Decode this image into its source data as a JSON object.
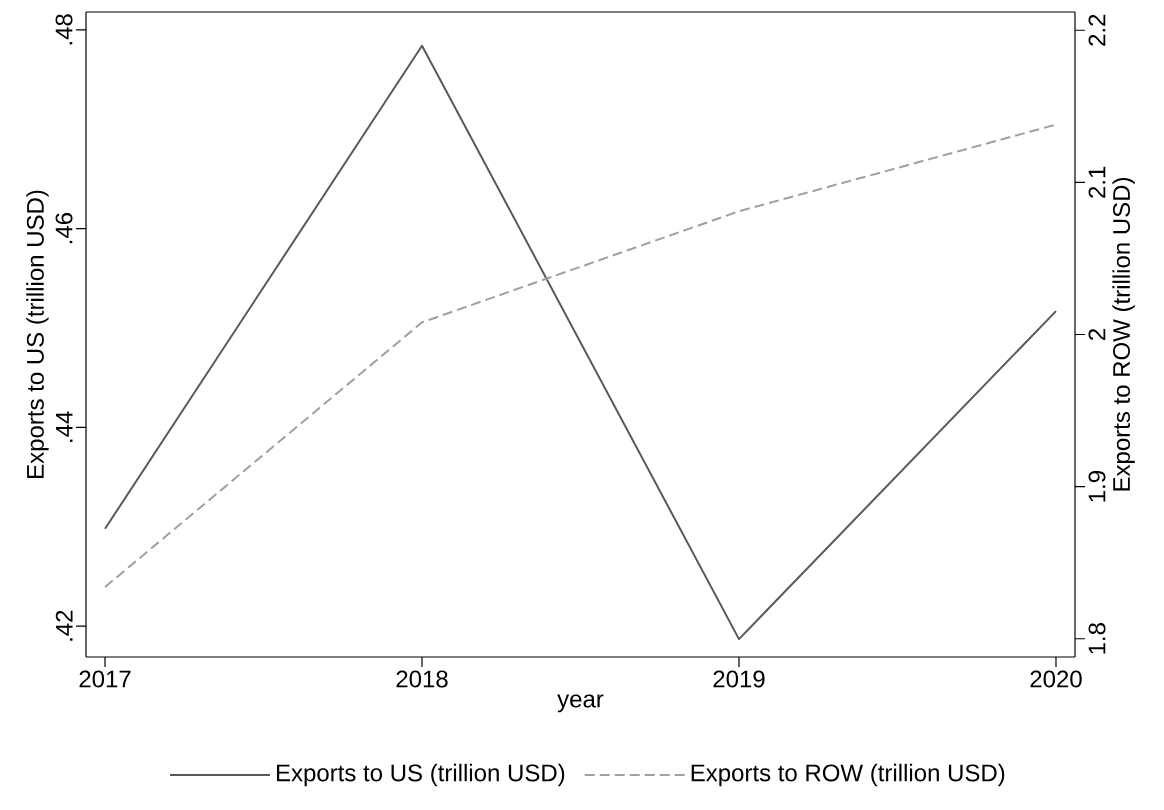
{
  "chart_data": {
    "type": "line",
    "xlabel": "year",
    "ylabel": "Exports to US (trillion USD)",
    "y2label": "Exports to ROW (trillion USD)",
    "x": [
      2017,
      2018,
      2019,
      2020
    ],
    "series": [
      {
        "name": "Exports to US (trillion USD)",
        "color": "#595959",
        "line_style": "solid",
        "values": [
          0.4298,
          0.4784,
          0.4187,
          0.4517
        ]
      },
      {
        "name": "Exports to ROW (trillion USD)",
        "color": "#a0a0a0",
        "line_style": "dashed",
        "axis": "y2",
        "values": [
          1.834,
          2.008,
          2.081,
          2.138
        ]
      }
    ],
    "xlim": [
      2016.94,
      2020.06
    ],
    "xticks": [
      2017,
      2018,
      2019,
      2020
    ],
    "ylim": [
      0.4169,
      0.4818
    ],
    "yticks": [
      {
        "value": 0.42,
        "label": ".42"
      },
      {
        "value": 0.44,
        "label": ".44"
      },
      {
        "value": 0.46,
        "label": ".46"
      },
      {
        "value": 0.48,
        "label": ".48"
      }
    ],
    "y2lim": [
      1.788,
      2.212
    ],
    "y2ticks": [
      1.8,
      1.9,
      2,
      2.1,
      2.2
    ],
    "grid": false,
    "legend": "bottom",
    "marker": "none"
  }
}
